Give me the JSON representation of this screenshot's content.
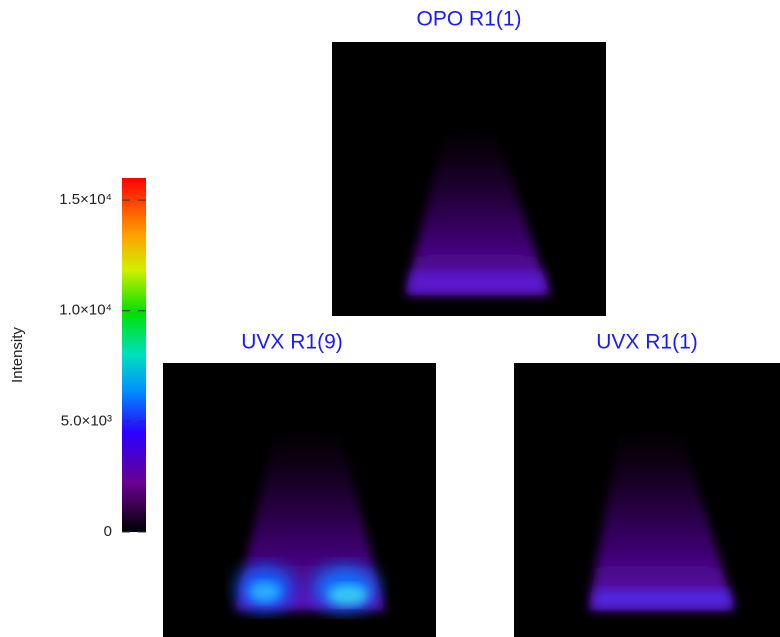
{
  "chart_data": {
    "type": "image-grid",
    "colorbar": {
      "label": "Intensity",
      "lim": [
        0,
        16000
      ],
      "ticks": [
        0,
        {
          "value": 5000,
          "label": "5.0×10³"
        },
        {
          "value": 10000,
          "label": "1.0×10⁴"
        },
        {
          "value": 15000,
          "label": "1.5×10⁴"
        }
      ]
    },
    "panels": [
      {
        "title": "OPO R1(1)"
      },
      {
        "title": "UVX R1(9)"
      },
      {
        "title": "UVX R1(1)"
      }
    ]
  }
}
